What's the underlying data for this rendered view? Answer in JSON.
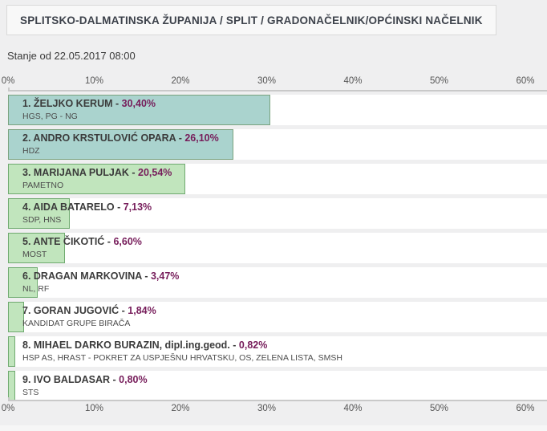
{
  "breadcrumb": {
    "text": "SPLITSKO-DALMATINSKA ŽUPANIJA  /  SPLIT  /  GRADONAČELNIK/OPĆINSKI NAČELNIK"
  },
  "status": {
    "text": "Stanje od 22.05.2017 08:00"
  },
  "colors": {
    "page_background": "#efeff0",
    "row_background": "#ffffff",
    "leading_bar_fill": "#aad3ce",
    "leading_bar_border": "#7aa37f",
    "bar_fill": "#c1e5bd",
    "bar_border": "#6faa6f",
    "percent_text": "#761c5a",
    "name_text": "#3b3b3b",
    "axis_text": "#555555"
  },
  "chart_data": {
    "type": "bar",
    "orientation": "horizontal",
    "title": "GRADONAČELNIK/OPĆINSKI NAČELNIK - SPLIT",
    "xlabel": "",
    "ylabel": "",
    "x_axis": {
      "min": 0,
      "max": 60,
      "unit": "%",
      "ticks": [
        "0%",
        "10%",
        "20%",
        "30%",
        "40%",
        "50%",
        "60%"
      ],
      "tick_values": [
        0,
        10,
        20,
        30,
        40,
        50,
        60
      ],
      "grid": false,
      "shown_top_and_bottom": true
    },
    "bars": [
      {
        "rank": "1.",
        "name": "ŽELJKO KERUM",
        "value": 30.4,
        "value_label": "30,40%",
        "party": "HGS, PG - NG",
        "leading": true
      },
      {
        "rank": "2.",
        "name": "ANDRO KRSTULOVIĆ OPARA",
        "value": 26.1,
        "value_label": "26,10%",
        "party": "HDZ",
        "leading": true
      },
      {
        "rank": "3.",
        "name": "MARIJANA PULJAK",
        "value": 20.54,
        "value_label": "20,54%",
        "party": "PAMETNO",
        "leading": false
      },
      {
        "rank": "4.",
        "name": "AIDA BATARELO",
        "value": 7.13,
        "value_label": "7,13%",
        "party": "SDP, HNS",
        "leading": false
      },
      {
        "rank": "5.",
        "name": "ANTE ČIKOTIĆ",
        "value": 6.6,
        "value_label": "6,60%",
        "party": "MOST",
        "leading": false
      },
      {
        "rank": "6.",
        "name": "DRAGAN MARKOVINA",
        "value": 3.47,
        "value_label": "3,47%",
        "party": "NL, RF",
        "leading": false
      },
      {
        "rank": "7.",
        "name": "GORAN JUGOVIĆ",
        "value": 1.84,
        "value_label": "1,84%",
        "party": "KANDIDAT GRUPE BIRAČA",
        "leading": false
      },
      {
        "rank": "8.",
        "name": "MIHAEL DARKO BURAZIN, dipl.ing.geod.",
        "value": 0.82,
        "value_label": "0,82%",
        "party": "HSP AS, HRAST - POKRET ZA USPJEŠNU HRVATSKU, OS, ZELENA LISTA, SMSH",
        "leading": false
      },
      {
        "rank": "9.",
        "name": "IVO BALDASAR",
        "value": 0.8,
        "value_label": "0,80%",
        "party": "STS",
        "leading": false
      }
    ]
  }
}
